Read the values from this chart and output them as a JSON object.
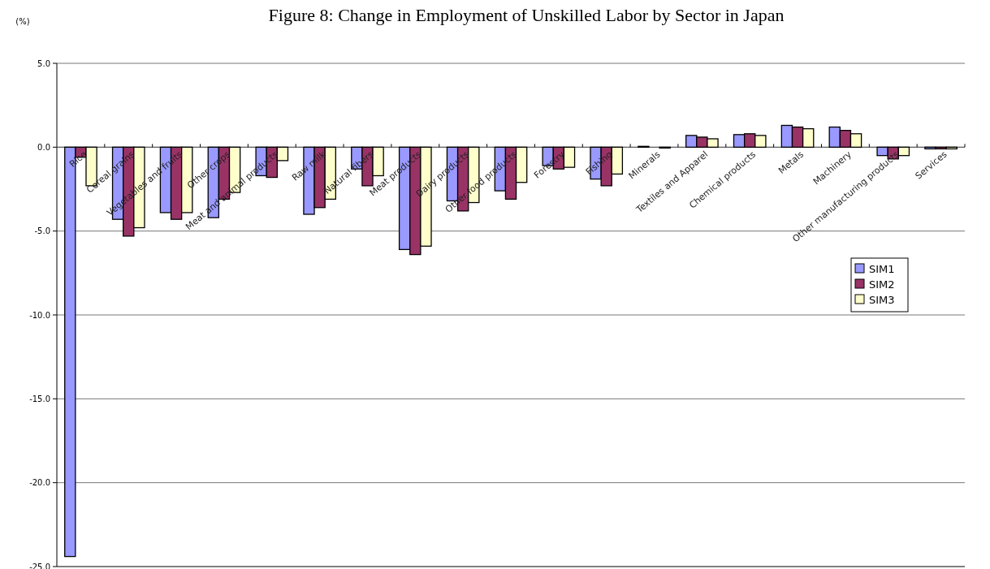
{
  "chart_data": {
    "type": "bar",
    "title": "Figure 8: Change in Employment of Unskilled Labor by Sector in Japan",
    "ylabel": "(%)",
    "categories": [
      "Rice",
      "Cereal grains",
      "Vegetables and fruits",
      "Other crops",
      "Meat and animal products",
      "Raw milk",
      "Natural fibers",
      "Meat products",
      "Dairy products",
      "Other food products",
      "Forestry",
      "Fishing",
      "Minerals",
      "Textiles and Apparel",
      "Chemical products",
      "Metals",
      "Machinery",
      "Other manufacturing products",
      "Services"
    ],
    "series": [
      {
        "name": "SIM1",
        "color": "#9999ff",
        "values": [
          -24.4,
          -4.3,
          -3.9,
          -4.2,
          -1.7,
          -4.0,
          -1.3,
          -6.1,
          -3.2,
          -2.6,
          -1.1,
          -1.9,
          0.05,
          0.7,
          0.75,
          1.3,
          1.2,
          -0.5,
          -0.1
        ]
      },
      {
        "name": "SIM2",
        "color": "#993366",
        "values": [
          -0.6,
          -5.3,
          -4.3,
          -3.1,
          -1.8,
          -3.6,
          -2.3,
          -6.4,
          -3.8,
          -3.1,
          -1.3,
          -2.3,
          0.0,
          0.6,
          0.8,
          1.2,
          1.0,
          -0.7,
          -0.1
        ]
      },
      {
        "name": "SIM3",
        "color": "#ffffcc",
        "values": [
          -2.3,
          -4.8,
          -3.9,
          -2.7,
          -0.8,
          -3.1,
          -1.7,
          -5.9,
          -3.3,
          -2.1,
          -1.2,
          -1.6,
          -0.05,
          0.5,
          0.7,
          1.1,
          0.8,
          -0.5,
          -0.1
        ]
      }
    ],
    "ylim": [
      -25,
      5
    ],
    "yticks": [
      {
        "value": -25,
        "label": "-25.0"
      },
      {
        "value": -20,
        "label": "-20.0"
      },
      {
        "value": -15,
        "label": "-15.0"
      },
      {
        "value": -10,
        "label": "-10.0"
      },
      {
        "value": -5,
        "label": "-5.0"
      },
      {
        "value": 0,
        "label": "0.0"
      },
      {
        "value": 5,
        "label": "5.0"
      }
    ],
    "grid": "y",
    "legend": "right"
  }
}
